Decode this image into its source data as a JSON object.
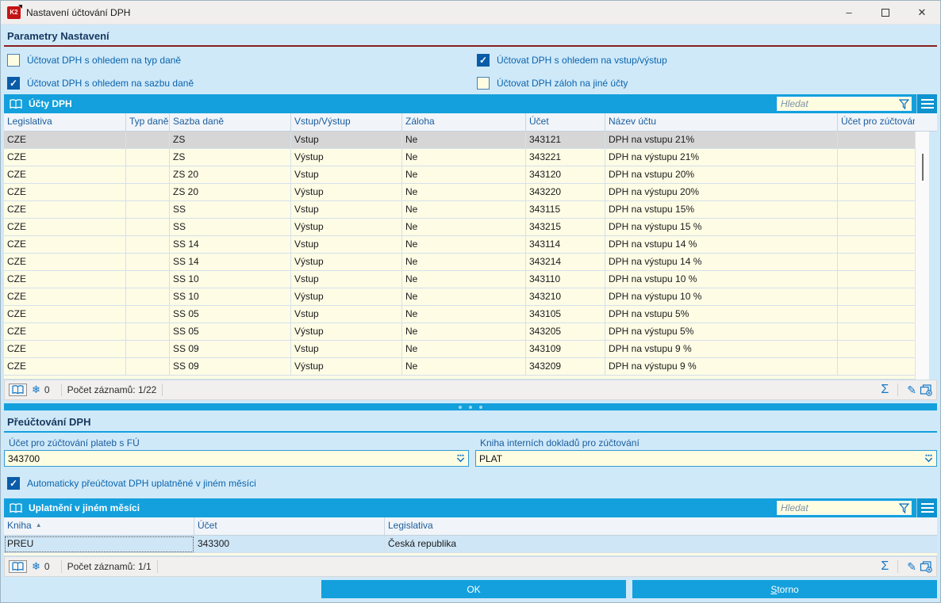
{
  "window": {
    "title": "Nastavení účtování DPH",
    "logo_text": "K2"
  },
  "colors": {
    "accent_blue": "#14a0dc",
    "checked_blue": "#0b5ca8",
    "row_cream": "#fefce5",
    "selected_gray": "#d6d6d6",
    "selected_lightblue": "#cfe6f7",
    "section_underline_red": "#8b2020",
    "label_blue": "#1a5c9e",
    "window_bg": "#cfe9f9"
  },
  "params_section": {
    "title": "Parametry Nastavení",
    "checkboxes": [
      {
        "label": "Účtovat DPH s ohledem na typ daně",
        "checked": false
      },
      {
        "label": "Účtovat DPH s ohledem na vstup/výstup",
        "checked": true
      },
      {
        "label": "Účtovat DPH s ohledem na sazbu daně",
        "checked": true
      },
      {
        "label": "Účtovat DPH záloh na jiné účty",
        "checked": false
      }
    ]
  },
  "accounts_table": {
    "title": "Účty DPH",
    "search_placeholder": "Hledat",
    "columns": [
      "Legislativa",
      "Typ daně",
      "Sazba daně",
      "Vstup/Výstup",
      "Záloha",
      "Účet",
      "Název účtu",
      "Účet pro zúčtování"
    ],
    "selected_row_index": 0,
    "rows": [
      [
        "CZE",
        "",
        "ZS",
        "Vstup",
        "Ne",
        "343121",
        "DPH na vstupu 21%",
        ""
      ],
      [
        "CZE",
        "",
        "ZS",
        "Výstup",
        "Ne",
        "343221",
        "DPH na výstupu 21%",
        ""
      ],
      [
        "CZE",
        "",
        "ZS 20",
        "Vstup",
        "Ne",
        "343120",
        "DPH na vstupu 20%",
        ""
      ],
      [
        "CZE",
        "",
        "ZS 20",
        "Výstup",
        "Ne",
        "343220",
        "DPH na výstupu 20%",
        ""
      ],
      [
        "CZE",
        "",
        "SS",
        "Vstup",
        "Ne",
        "343115",
        "DPH na vstupu 15%",
        ""
      ],
      [
        "CZE",
        "",
        "SS",
        "Výstup",
        "Ne",
        "343215",
        "DPH na výstupu 15 %",
        ""
      ],
      [
        "CZE",
        "",
        "SS 14",
        "Vstup",
        "Ne",
        "343114",
        "DPH na vstupu 14 %",
        ""
      ],
      [
        "CZE",
        "",
        "SS 14",
        "Výstup",
        "Ne",
        "343214",
        "DPH na výstupu 14 %",
        ""
      ],
      [
        "CZE",
        "",
        "SS 10",
        "Vstup",
        "Ne",
        "343110",
        "DPH na vstupu 10 %",
        ""
      ],
      [
        "CZE",
        "",
        "SS 10",
        "Výstup",
        "Ne",
        "343210",
        "DPH na výstupu 10 %",
        ""
      ],
      [
        "CZE",
        "",
        "SS 05",
        "Vstup",
        "Ne",
        "343105",
        "DPH na vstupu 5%",
        ""
      ],
      [
        "CZE",
        "",
        "SS 05",
        "Výstup",
        "Ne",
        "343205",
        "DPH na výstupu 5%",
        ""
      ],
      [
        "CZE",
        "",
        "SS 09",
        "Vstup",
        "Ne",
        "343109",
        "DPH na vstupu 9 %",
        ""
      ],
      [
        "CZE",
        "",
        "SS 09",
        "Výstup",
        "Ne",
        "343209",
        "DPH na výstupu 9 %",
        ""
      ]
    ],
    "footer": {
      "frozen_count": "0",
      "records_label": "Počet záznamů: 1/22"
    }
  },
  "reposting_section": {
    "title": "Přeúčtování DPH",
    "fields": [
      {
        "label": "Účet pro zúčtování plateb s FÚ",
        "value": "343700"
      },
      {
        "label": "Kniha interních dokladů pro zúčtování",
        "value": "PLAT"
      }
    ],
    "checkbox": {
      "label": "Automaticky přeúčtovat DPH uplatněné v jiném měsíci",
      "checked": true
    }
  },
  "other_month_table": {
    "title": "Uplatnění v jiném měsíci",
    "search_placeholder": "Hledat",
    "columns": [
      "Kniha",
      "Účet",
      "Legislativa"
    ],
    "sort_column": 0,
    "selected_row_index": 0,
    "focused_cell": [
      0,
      0
    ],
    "rows": [
      [
        "PREU",
        "343300",
        "Česká republika"
      ]
    ],
    "footer": {
      "frozen_count": "0",
      "records_label": "Počet záznamů: 1/1"
    }
  },
  "buttons": {
    "ok": "OK",
    "cancel": "Storno"
  }
}
